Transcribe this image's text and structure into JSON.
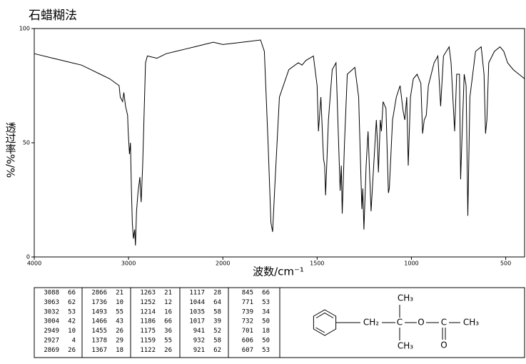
{
  "chart_data": {
    "type": "line",
    "title": "石蜡糊法",
    "xlabel": "波数/cm⁻¹",
    "ylabel": "透过率%/%",
    "xlim": [
      4000,
      400
    ],
    "x_scale_change": 2000,
    "ylim": [
      0,
      100
    ],
    "xticks": [
      4000,
      3000,
      2000,
      1500,
      1000,
      500
    ],
    "yticks": [
      0,
      50,
      100
    ],
    "color": "#000000",
    "x": [
      4000,
      3800,
      3600,
      3500,
      3400,
      3300,
      3200,
      3100,
      3088,
      3063,
      3050,
      3032,
      3010,
      3004,
      2990,
      2980,
      2970,
      2960,
      2949,
      2935,
      2927,
      2915,
      2900,
      2880,
      2869,
      2866,
      2850,
      2820,
      2800,
      2700,
      2600,
      2500,
      2400,
      2300,
      2200,
      2100,
      2000,
      1900,
      1800,
      1780,
      1760,
      1745,
      1736,
      1725,
      1700,
      1650,
      1600,
      1580,
      1560,
      1520,
      1500,
      1493,
      1480,
      1466,
      1460,
      1455,
      1440,
      1420,
      1400,
      1390,
      1378,
      1372,
      1367,
      1355,
      1340,
      1300,
      1280,
      1263,
      1258,
      1252,
      1240,
      1230,
      1214,
      1200,
      1186,
      1180,
      1175,
      1165,
      1159,
      1150,
      1135,
      1122,
      1117,
      1100,
      1080,
      1060,
      1044,
      1035,
      1025,
      1017,
      1005,
      990,
      970,
      950,
      941,
      932,
      921,
      910,
      880,
      860,
      845,
      830,
      800,
      790,
      771,
      760,
      745,
      739,
      732,
      720,
      710,
      701,
      690,
      660,
      630,
      615,
      607,
      600,
      590,
      560,
      530,
      510,
      490,
      460,
      430,
      400
    ],
    "values": [
      89,
      87,
      85,
      84,
      82,
      80,
      78,
      75,
      70,
      68,
      72,
      66,
      62,
      55,
      45,
      50,
      30,
      15,
      8,
      12,
      5,
      20,
      28,
      35,
      26,
      24,
      40,
      85,
      88,
      87,
      89,
      90,
      91,
      92,
      93,
      94,
      93,
      94,
      95,
      90,
      50,
      15,
      11,
      30,
      70,
      82,
      85,
      84,
      86,
      88,
      75,
      55,
      70,
      43,
      40,
      27,
      60,
      82,
      85,
      60,
      29,
      40,
      19,
      50,
      80,
      83,
      70,
      21,
      30,
      12,
      40,
      55,
      20,
      40,
      60,
      50,
      37,
      60,
      55,
      68,
      65,
      28,
      30,
      60,
      70,
      75,
      64,
      60,
      70,
      40,
      70,
      78,
      80,
      76,
      54,
      60,
      62,
      75,
      85,
      88,
      66,
      88,
      92,
      85,
      55,
      80,
      80,
      34,
      52,
      80,
      75,
      18,
      70,
      90,
      92,
      80,
      54,
      60,
      85,
      90,
      92,
      90,
      85,
      82,
      80,
      78
    ]
  },
  "peak_table": {
    "rows": [
      [
        [
          3088,
          66
        ],
        [
          2866,
          21
        ],
        [
          1263,
          21
        ],
        [
          1117,
          28
        ],
        [
          845,
          66
        ]
      ],
      [
        [
          3063,
          62
        ],
        [
          1736,
          10
        ],
        [
          1252,
          12
        ],
        [
          1044,
          64
        ],
        [
          771,
          53
        ]
      ],
      [
        [
          3032,
          53
        ],
        [
          1493,
          55
        ],
        [
          1214,
          16
        ],
        [
          1035,
          58
        ],
        [
          739,
          34
        ]
      ],
      [
        [
          3004,
          42
        ],
        [
          1466,
          43
        ],
        [
          1186,
          66
        ],
        [
          1017,
          39
        ],
        [
          732,
          50
        ]
      ],
      [
        [
          2949,
          10
        ],
        [
          1455,
          26
        ],
        [
          1175,
          36
        ],
        [
          941,
          52
        ],
        [
          701,
          18
        ]
      ],
      [
        [
          2927,
          4
        ],
        [
          1378,
          29
        ],
        [
          1159,
          55
        ],
        [
          932,
          58
        ],
        [
          606,
          50
        ]
      ],
      [
        [
          2869,
          26
        ],
        [
          1367,
          18
        ],
        [
          1122,
          26
        ],
        [
          921,
          62
        ],
        [
          607,
          53
        ]
      ]
    ]
  },
  "structure": {
    "labels": [
      "CH₂",
      "C",
      "CH₃",
      "CH₃",
      "O",
      "C",
      "O",
      "CH₃"
    ]
  }
}
